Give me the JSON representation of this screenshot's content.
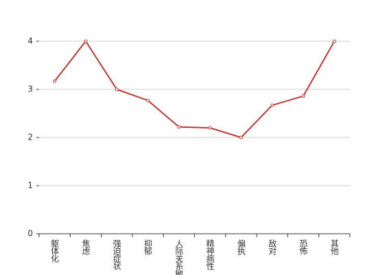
{
  "chart_data": {
    "type": "line",
    "categories": [
      "躯体化",
      "焦虑",
      "强迫症状",
      "抑郁",
      "人际关系敏感",
      "精神病性",
      "偏执",
      "敌对",
      "恐怖",
      "其他"
    ],
    "values": [
      3.17,
      4,
      3.0,
      2.77,
      2.22,
      2.2,
      2.0,
      2.67,
      2.86,
      4.0
    ],
    "color": "#c23531",
    "ylim": [
      0,
      4
    ],
    "yticks": [
      0,
      1,
      2,
      3,
      4
    ],
    "grid": true
  }
}
